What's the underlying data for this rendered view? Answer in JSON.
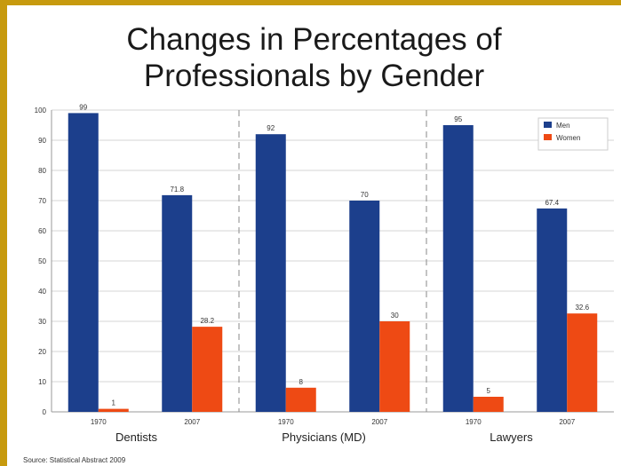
{
  "title_lines": [
    "Changes in Percentages of",
    "Professionals by Gender"
  ],
  "source": "Source: Statistical Abstract 2009",
  "colors": {
    "men": "#1c3f8c",
    "women": "#ee4a14",
    "frame": "#c79a0e"
  },
  "chart_data": {
    "type": "bar",
    "title": "Changes in Percentages of Professionals by Gender",
    "xlabel": "",
    "ylabel": "",
    "ylim": [
      0,
      100
    ],
    "yticks": [
      0,
      10,
      20,
      30,
      40,
      50,
      60,
      70,
      80,
      90,
      100
    ],
    "grid": true,
    "legend_position": "top-right",
    "groups": [
      "Dentists",
      "Physicians (MD)",
      "Lawyers"
    ],
    "categories": [
      "1970",
      "2007",
      "1970",
      "2007",
      "1970",
      "2007"
    ],
    "series": [
      {
        "name": "Men",
        "values": [
          99,
          71.8,
          92,
          70,
          95,
          67.4
        ],
        "labels": [
          "99",
          "71.8",
          "92",
          "70",
          "95",
          "67.4"
        ]
      },
      {
        "name": "Women",
        "values": [
          1,
          28.2,
          8,
          30,
          5,
          32.6
        ],
        "labels": [
          "1",
          "28.2",
          "8",
          "30",
          "5",
          "32.6"
        ]
      }
    ]
  }
}
